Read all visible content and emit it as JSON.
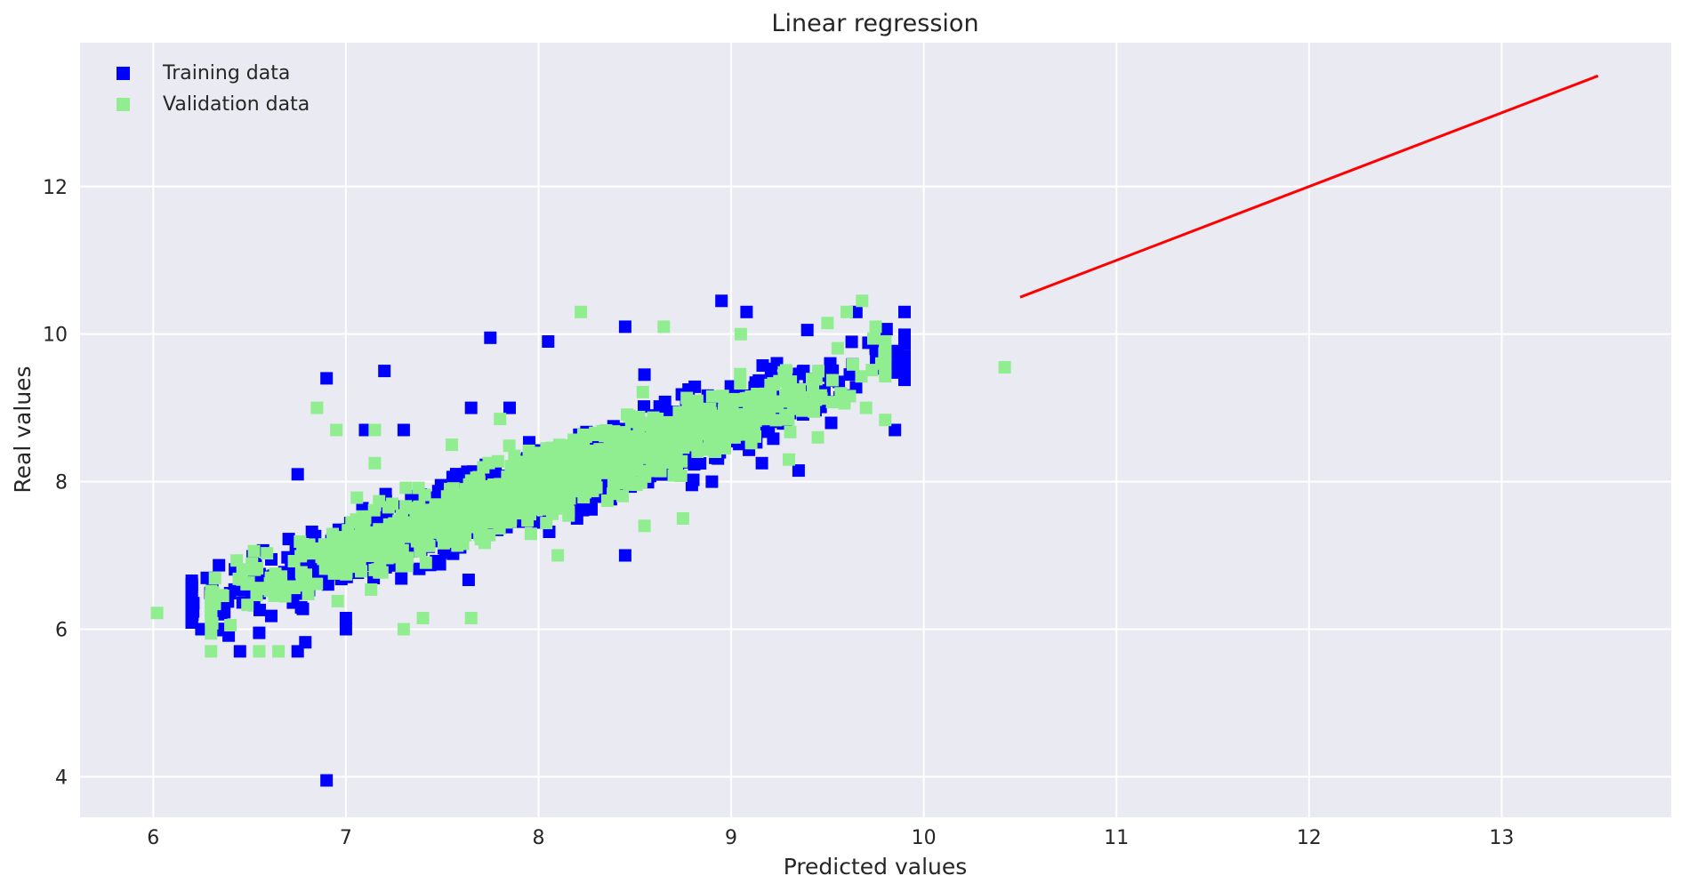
{
  "chart_data": {
    "type": "scatter",
    "title": "Linear regression",
    "xlabel": "Predicted values",
    "ylabel": "Real values",
    "xlim": [
      5.62,
      13.88
    ],
    "ylim": [
      3.45,
      13.95
    ],
    "xticks": [
      6,
      7,
      8,
      9,
      10,
      11,
      12,
      13
    ],
    "yticks": [
      4,
      6,
      8,
      10,
      12
    ],
    "grid": true,
    "legend_position": "top-left",
    "background_color": "#eaeaf2",
    "series": [
      {
        "name": "Training data",
        "marker": "square",
        "color": "#0000ff",
        "cluster": {
          "x_range": [
            6.2,
            9.9
          ],
          "slope": 0.9,
          "intercept": 0.75,
          "spread": 0.45,
          "count": 1200
        },
        "points": [
          [
            6.9,
            3.95
          ],
          [
            6.9,
            9.4
          ],
          [
            7.2,
            9.5
          ],
          [
            7.75,
            9.95
          ],
          [
            8.05,
            9.9
          ],
          [
            8.45,
            10.1
          ],
          [
            8.95,
            10.45
          ],
          [
            9.08,
            10.3
          ],
          [
            9.9,
            10.3
          ],
          [
            9.85,
            8.7
          ],
          [
            9.75,
            9.8
          ],
          [
            8.45,
            7.0
          ],
          [
            8.9,
            8.0
          ],
          [
            6.25,
            6.0
          ],
          [
            6.45,
            5.7
          ],
          [
            6.75,
            5.7
          ],
          [
            7.0,
            6.0
          ],
          [
            6.75,
            8.1
          ],
          [
            7.1,
            8.7
          ],
          [
            7.3,
            8.7
          ],
          [
            7.65,
            9.0
          ],
          [
            7.85,
            9.0
          ],
          [
            8.55,
            9.45
          ],
          [
            9.65,
            10.3
          ],
          [
            9.35,
            8.15
          ],
          [
            8.2,
            7.5
          ],
          [
            7.0,
            6.15
          ],
          [
            6.55,
            5.95
          ]
        ]
      },
      {
        "name": "Validation data",
        "marker": "square",
        "color": "#90ee90",
        "cluster": {
          "x_range": [
            6.3,
            9.8
          ],
          "slope": 0.9,
          "intercept": 0.75,
          "spread": 0.4,
          "count": 1000
        },
        "points": [
          [
            6.02,
            6.22
          ],
          [
            10.42,
            9.55
          ],
          [
            6.3,
            5.7
          ],
          [
            6.55,
            5.7
          ],
          [
            6.65,
            5.7
          ],
          [
            6.85,
            9.0
          ],
          [
            6.95,
            8.7
          ],
          [
            7.15,
            8.7
          ],
          [
            7.15,
            8.25
          ],
          [
            8.22,
            10.3
          ],
          [
            8.65,
            10.1
          ],
          [
            9.68,
            10.45
          ],
          [
            9.6,
            10.3
          ],
          [
            9.75,
            10.1
          ],
          [
            9.5,
            10.15
          ],
          [
            9.05,
            10.0
          ],
          [
            9.45,
            8.6
          ],
          [
            9.3,
            8.3
          ],
          [
            9.7,
            9.0
          ],
          [
            9.78,
            9.6
          ],
          [
            7.3,
            6.0
          ],
          [
            7.65,
            6.15
          ],
          [
            7.4,
            6.15
          ],
          [
            8.1,
            7.0
          ],
          [
            8.55,
            7.4
          ],
          [
            8.75,
            7.5
          ],
          [
            7.55,
            8.5
          ],
          [
            7.8,
            8.85
          ]
        ]
      }
    ],
    "line": {
      "color": "#ff0000",
      "x": [
        10.5,
        13.5
      ],
      "y": [
        10.5,
        13.5
      ]
    }
  },
  "legend": {
    "items": [
      {
        "label": "Training data",
        "color": "#0000ff"
      },
      {
        "label": "Validation data",
        "color": "#90ee90"
      }
    ]
  }
}
